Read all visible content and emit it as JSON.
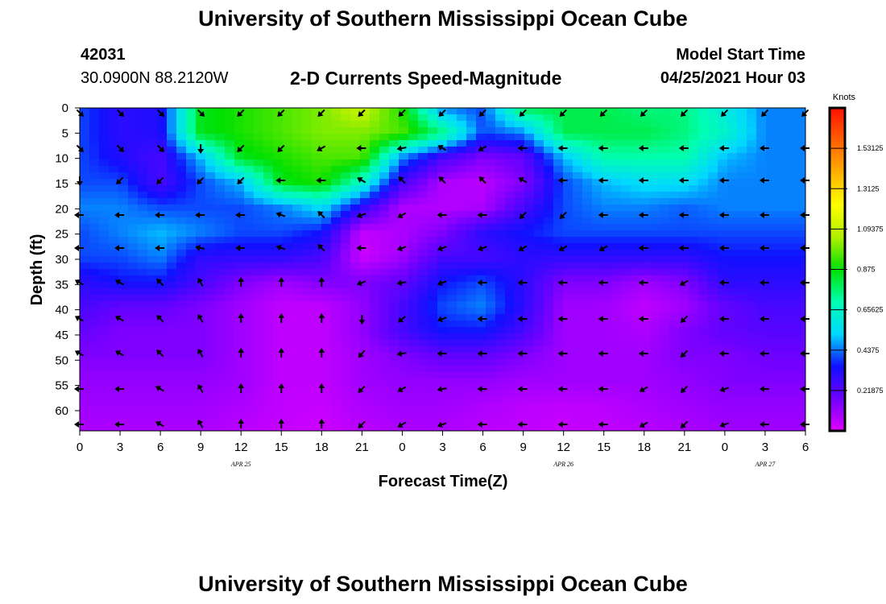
{
  "header": {
    "title": "University of Southern Mississippi Ocean Cube",
    "station_id": "42031",
    "coordinates": "30.0900N  88.2120W",
    "subtitle": "2-D Currents Speed-Magnitude",
    "model_start_label": "Model Start Time",
    "model_start_value": "04/25/2021 Hour 03"
  },
  "footer": {
    "title": "University of Southern Mississippi Ocean Cube"
  },
  "colorbar": {
    "title": "Knots",
    "labels": [
      "1.53125",
      "1.3125",
      "1.09375",
      "0.875",
      "0.65625",
      "0.4375",
      "0.21875"
    ],
    "colors": [
      "#e000ff",
      "#7000ff",
      "#1010ff",
      "#00d8ff",
      "#00ffb0",
      "#00e000",
      "#b0f000",
      "#ffff00",
      "#ffb000",
      "#ff6000",
      "#ff1000"
    ]
  },
  "chart_data": {
    "type": "heatmap",
    "title": "2-D Currents Speed-Magnitude",
    "xlabel": "Forecast Time(Z)",
    "ylabel": "Depth (ft)",
    "x_tick_labels": [
      "0",
      "3",
      "6",
      "9",
      "12",
      "15",
      "18",
      "21",
      "0",
      "3",
      "6",
      "9",
      "12",
      "15",
      "18",
      "21",
      "0",
      "3",
      "6"
    ],
    "date_labels": [
      {
        "text": "APR  25",
        "at_tick": 4
      },
      {
        "text": "APR  26",
        "at_tick": 12
      },
      {
        "text": "APR  27",
        "at_tick": 17
      }
    ],
    "y_tick_labels": [
      "0",
      "5",
      "10",
      "15",
      "20",
      "25",
      "30",
      "35",
      "40",
      "45",
      "50",
      "55",
      "60"
    ],
    "ylim": [
      0,
      64
    ],
    "value_range_knots": [
      0,
      1.75
    ],
    "speed_grid_knots": [
      [
        0.4,
        0.3,
        0.32,
        0.85,
        0.9,
        0.95,
        1.0,
        1.1,
        0.9,
        0.45,
        0.4,
        0.8,
        0.8,
        0.8,
        0.75,
        0.75,
        0.6,
        0.45,
        0.45
      ],
      [
        0.4,
        0.3,
        0.32,
        0.85,
        0.9,
        0.95,
        1.0,
        1.0,
        0.95,
        0.75,
        0.4,
        0.45,
        0.8,
        0.8,
        0.8,
        0.75,
        0.65,
        0.45,
        0.45
      ],
      [
        0.4,
        0.32,
        0.25,
        0.5,
        0.85,
        0.9,
        0.95,
        0.95,
        0.45,
        0.25,
        0.15,
        0.2,
        0.5,
        0.7,
        0.7,
        0.7,
        0.5,
        0.45,
        0.45
      ],
      [
        0.4,
        0.4,
        0.25,
        0.4,
        0.5,
        0.85,
        0.9,
        0.65,
        0.25,
        0.08,
        0.06,
        0.15,
        0.4,
        0.5,
        0.55,
        0.55,
        0.45,
        0.45,
        0.45
      ],
      [
        0.45,
        0.45,
        0.4,
        0.4,
        0.4,
        0.45,
        0.55,
        0.3,
        0.08,
        0.07,
        0.08,
        0.25,
        0.4,
        0.45,
        0.45,
        0.42,
        0.45,
        0.45,
        0.45
      ],
      [
        0.4,
        0.45,
        0.5,
        0.45,
        0.4,
        0.4,
        0.35,
        0.05,
        0.08,
        0.15,
        0.3,
        0.35,
        0.4,
        0.4,
        0.4,
        0.4,
        0.4,
        0.4,
        0.4
      ],
      [
        0.4,
        0.4,
        0.45,
        0.3,
        0.3,
        0.3,
        0.25,
        0.03,
        0.1,
        0.25,
        0.25,
        0.3,
        0.3,
        0.3,
        0.3,
        0.3,
        0.35,
        0.35,
        0.35
      ],
      [
        0.3,
        0.35,
        0.35,
        0.25,
        0.15,
        0.1,
        0.15,
        0.15,
        0.2,
        0.35,
        0.4,
        0.3,
        0.15,
        0.15,
        0.1,
        0.15,
        0.3,
        0.3,
        0.3
      ],
      [
        0.25,
        0.2,
        0.2,
        0.15,
        0.1,
        0.05,
        0.05,
        0.12,
        0.25,
        0.4,
        0.45,
        0.3,
        0.1,
        0.1,
        0.05,
        0.1,
        0.2,
        0.25,
        0.25
      ],
      [
        0.2,
        0.15,
        0.15,
        0.15,
        0.1,
        0.05,
        0.05,
        0.12,
        0.25,
        0.35,
        0.35,
        0.25,
        0.1,
        0.1,
        0.08,
        0.15,
        0.2,
        0.22,
        0.22
      ],
      [
        0.15,
        0.15,
        0.15,
        0.15,
        0.1,
        0.05,
        0.05,
        0.1,
        0.15,
        0.2,
        0.2,
        0.15,
        0.1,
        0.1,
        0.1,
        0.15,
        0.15,
        0.18,
        0.18
      ],
      [
        0.12,
        0.12,
        0.12,
        0.12,
        0.1,
        0.05,
        0.05,
        0.1,
        0.12,
        0.12,
        0.12,
        0.1,
        0.1,
        0.1,
        0.1,
        0.12,
        0.15,
        0.15,
        0.15
      ],
      [
        0.1,
        0.1,
        0.1,
        0.1,
        0.08,
        0.05,
        0.04,
        0.08,
        0.1,
        0.1,
        0.08,
        0.06,
        0.05,
        0.06,
        0.08,
        0.1,
        0.12,
        0.12,
        0.12
      ],
      [
        0.08,
        0.08,
        0.08,
        0.08,
        0.06,
        0.04,
        0.03,
        0.06,
        0.08,
        0.08,
        0.06,
        0.05,
        0.04,
        0.05,
        0.06,
        0.08,
        0.1,
        0.1,
        0.1
      ]
    ],
    "direction_grid_deg": [
      [
        135,
        135,
        135,
        135,
        225,
        225,
        225,
        225,
        225,
        225,
        225,
        225,
        225,
        225,
        225,
        225,
        225,
        225,
        225
      ],
      [
        135,
        135,
        135,
        180,
        225,
        225,
        240,
        270,
        260,
        300,
        240,
        270,
        270,
        270,
        270,
        270,
        270,
        270,
        270
      ],
      [
        135,
        135,
        135,
        180,
        225,
        225,
        240,
        270,
        260,
        300,
        300,
        300,
        270,
        270,
        270,
        270,
        270,
        270,
        270
      ],
      [
        180,
        225,
        225,
        225,
        225,
        270,
        270,
        300,
        315,
        315,
        315,
        300,
        270,
        270,
        270,
        270,
        270,
        270,
        270
      ],
      [
        270,
        270,
        270,
        270,
        270,
        290,
        315,
        250,
        240,
        270,
        270,
        225,
        225,
        270,
        270,
        270,
        270,
        270,
        270
      ],
      [
        270,
        270,
        270,
        280,
        270,
        290,
        315,
        270,
        250,
        250,
        250,
        240,
        240,
        240,
        270,
        270,
        270,
        270,
        270
      ],
      [
        270,
        270,
        270,
        300,
        315,
        315,
        315,
        270,
        260,
        250,
        270,
        270,
        270,
        270,
        270,
        270,
        270,
        270,
        270
      ],
      [
        300,
        300,
        315,
        330,
        0,
        0,
        0,
        250,
        260,
        250,
        270,
        270,
        270,
        270,
        270,
        240,
        270,
        270,
        270
      ],
      [
        300,
        300,
        315,
        330,
        0,
        0,
        0,
        180,
        230,
        250,
        270,
        270,
        270,
        270,
        270,
        225,
        270,
        270,
        270
      ],
      [
        300,
        300,
        315,
        330,
        0,
        0,
        0,
        220,
        260,
        270,
        270,
        270,
        270,
        270,
        270,
        225,
        270,
        270,
        270
      ],
      [
        300,
        300,
        315,
        330,
        0,
        0,
        0,
        225,
        240,
        270,
        270,
        270,
        270,
        270,
        270,
        225,
        270,
        270,
        270
      ],
      [
        270,
        270,
        300,
        330,
        0,
        0,
        0,
        225,
        240,
        260,
        270,
        270,
        270,
        270,
        240,
        225,
        250,
        270,
        270
      ],
      [
        270,
        270,
        300,
        330,
        0,
        0,
        0,
        225,
        240,
        250,
        270,
        270,
        270,
        270,
        240,
        225,
        250,
        270,
        270
      ],
      [
        270,
        270,
        300,
        330,
        0,
        0,
        30,
        225,
        240,
        250,
        270,
        270,
        270,
        270,
        240,
        225,
        250,
        270,
        270
      ]
    ]
  }
}
